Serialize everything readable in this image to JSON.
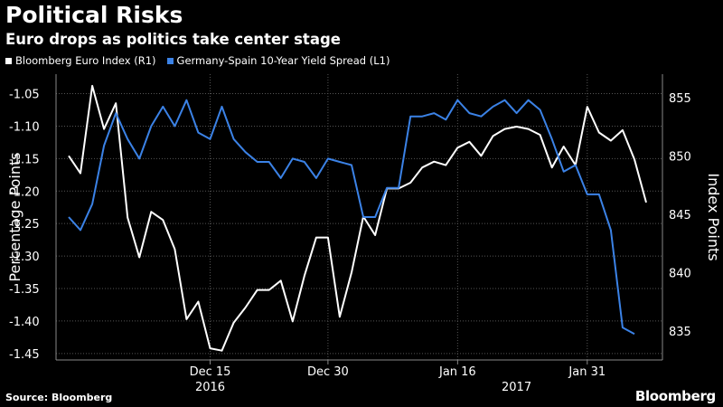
{
  "header": {
    "title": "Political Risks",
    "subtitle": "Euro drops as politics take center stage"
  },
  "footer": {
    "source": "Source: Bloomberg",
    "brand": "Bloomberg"
  },
  "colors": {
    "background": "#000000",
    "euro_index": "#ffffff",
    "spread": "#3b82e6",
    "grid": "#555555"
  },
  "chart_data": {
    "type": "line",
    "ylabel_left": "Percentage Points",
    "ylabel_right": "Index Points",
    "ylim_left": [
      -1.46,
      -1.02
    ],
    "ylim_right": [
      832.5,
      857
    ],
    "yticks_left": [
      "-1.05",
      "-1.10",
      "-1.15",
      "-1.20",
      "-1.25",
      "-1.30",
      "-1.35",
      "-1.40",
      "-1.45"
    ],
    "yticks_right": [
      "855",
      "850",
      "845",
      "840",
      "835"
    ],
    "xticks": [
      {
        "label": "Dec 15",
        "index": 12
      },
      {
        "label": "Dec 30",
        "index": 22
      },
      {
        "label": "Jan 16",
        "index": 33
      },
      {
        "label": "Jan 31",
        "index": 44
      }
    ],
    "year_labels": [
      {
        "label": "2016",
        "index": 12
      },
      {
        "label": "2017",
        "index": 38
      }
    ],
    "grid": true,
    "series": [
      {
        "name": "Bloomberg Euro Index (R1)",
        "axis": "right",
        "color": "#ffffff",
        "values": [
          850.0,
          848.5,
          856.0,
          852.3,
          854.5,
          844.7,
          841.3,
          845.2,
          844.5,
          842.0,
          836.0,
          837.5,
          833.5,
          833.3,
          835.7,
          837.0,
          838.5,
          838.5,
          839.3,
          835.8,
          839.7,
          843.0,
          843.0,
          836.2,
          840.0,
          844.8,
          843.2,
          847.2,
          847.2,
          847.7,
          849.0,
          849.5,
          849.2,
          850.7,
          851.2,
          850.0,
          851.7,
          852.3,
          852.5,
          852.3,
          851.8,
          849.0,
          850.8,
          849.2,
          854.2,
          852.0,
          851.3,
          852.2,
          849.7,
          846.0
        ]
      },
      {
        "name": "Germany-Spain 10-Year Yield Spread (L1)",
        "axis": "left",
        "color": "#3b82e6",
        "values": [
          -1.24,
          -1.26,
          -1.22,
          -1.13,
          -1.08,
          -1.12,
          -1.15,
          -1.1,
          -1.07,
          -1.1,
          -1.06,
          -1.11,
          -1.12,
          -1.07,
          -1.12,
          -1.14,
          -1.155,
          -1.155,
          -1.18,
          -1.15,
          -1.155,
          -1.18,
          -1.15,
          -1.155,
          -1.16,
          -1.24,
          -1.24,
          -1.195,
          -1.195,
          -1.085,
          -1.085,
          -1.08,
          -1.09,
          -1.06,
          -1.08,
          -1.085,
          -1.07,
          -1.06,
          -1.08,
          -1.06,
          -1.075,
          -1.12,
          -1.17,
          -1.16,
          -1.205,
          -1.205,
          -1.26,
          -1.41,
          -1.42
        ]
      }
    ]
  }
}
